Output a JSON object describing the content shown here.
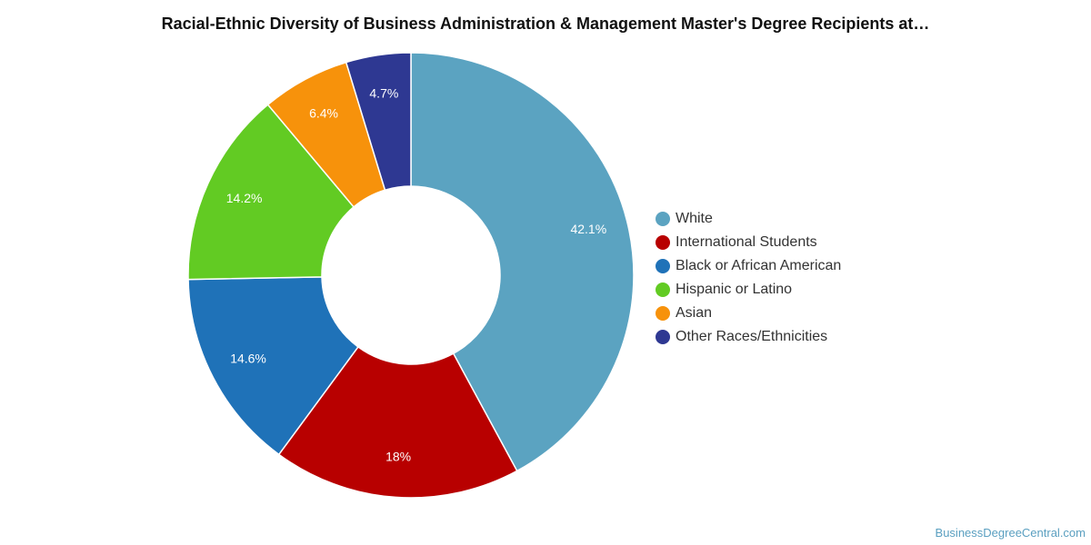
{
  "chart_data": {
    "type": "pie",
    "variant": "donut",
    "title": "Racial-Ethnic Diversity of Business Administration & Management Master's Degree Recipients at…",
    "legend_position": "right",
    "slices": [
      {
        "label": "White",
        "value": 42.1,
        "display": "42.1%",
        "color": "#5ba3c1"
      },
      {
        "label": "International Students",
        "value": 18.0,
        "display": "18%",
        "color": "#b80000"
      },
      {
        "label": "Black or African American",
        "value": 14.6,
        "display": "14.6%",
        "color": "#1f72b8"
      },
      {
        "label": "Hispanic or Latino",
        "value": 14.2,
        "display": "14.2%",
        "color": "#62cb23"
      },
      {
        "label": "Asian",
        "value": 6.4,
        "display": "6.4%",
        "color": "#f7920b"
      },
      {
        "label": "Other Races/Ethnicities",
        "value": 4.7,
        "display": "4.7%",
        "color": "#2e3892"
      }
    ]
  },
  "credit": "BusinessDegreeCentral.com"
}
